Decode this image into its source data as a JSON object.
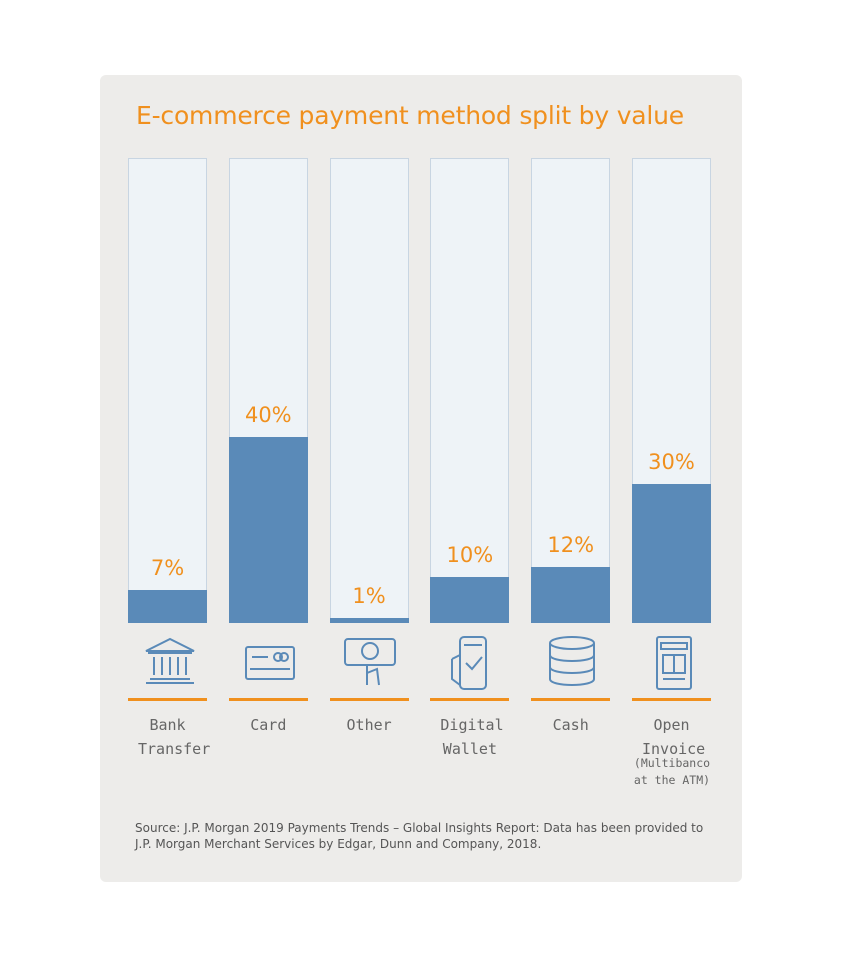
{
  "chart_data": {
    "type": "bar",
    "title": "E-commerce payment method split by value",
    "categories": [
      "Bank Transfer",
      "Card",
      "Other",
      "Digital Wallet",
      "Cash",
      "Open Invoice"
    ],
    "values": [
      7,
      40,
      1,
      10,
      12,
      30
    ],
    "value_labels": [
      "7%",
      "40%",
      "1%",
      "10%",
      "12%",
      "30%"
    ],
    "category_notes": [
      null,
      null,
      null,
      null,
      null,
      "(Multibanco at the ATM)"
    ],
    "color": "#5a8ab8",
    "ylim": [
      0,
      100
    ],
    "source": "Source: J.P. Morgan 2019 Payments Trends – Global Insights Report: Data has been provided to J.P. Morgan Merchant Services by Edgar, Dunn and Company, 2018."
  }
}
